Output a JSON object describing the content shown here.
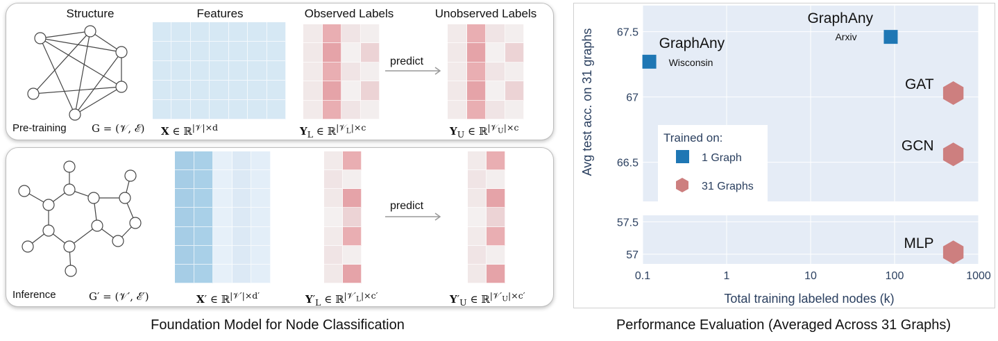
{
  "left": {
    "pretrain": {
      "headers": {
        "structure": "Structure",
        "features": "Features",
        "observed": "Observed Labels",
        "unobserved": "Unobserved Labels"
      },
      "stage_label": "Pre-training",
      "graph_math": "G = (𝒱, ℰ)",
      "features_math": "X ∈ ℝ|𝒱|×d",
      "observed_math": "YL ∈ ℝ|𝒱L|×c",
      "unobserved_math": "YU ∈ ℝ|𝒱U|×c",
      "predict": "predict"
    },
    "inference": {
      "stage_label": "Inference",
      "graph_math": "G′ = (𝒱′, ℰ′)",
      "features_math": "X′ ∈ ℝ|𝒱′|×d′",
      "observed_math": "Y′L ∈ ℝ|𝒱′L|×c′",
      "unobserved_math": "Y′U ∈ ℝ|𝒱′U|×c′",
      "predict": "predict"
    },
    "caption": "Foundation Model for Node Classification"
  },
  "colors": {
    "blue_marker": "#1f77b4",
    "red_marker": "#cd7f7f",
    "plot_bg": "#e5ecf6",
    "feature_blue": "#a6cde6",
    "label_red": "#e8a0a6"
  },
  "chart_data": {
    "type": "scatter",
    "title": "",
    "xlabel": "Total training labeled nodes (k)",
    "ylabel": "Avg test acc. on 31 graphs",
    "x_scale": "log",
    "xlim": [
      0.1,
      1000
    ],
    "x_ticks": [
      "0.1",
      "1",
      "10",
      "100",
      "1000"
    ],
    "upper_panel": {
      "ylim": [
        66.2,
        67.7
      ],
      "y_ticks": [
        "66.5",
        "67",
        "67.5"
      ]
    },
    "lower_panel": {
      "ylim": [
        56.85,
        57.6
      ],
      "y_ticks": [
        "57",
        "57.5"
      ]
    },
    "legend": {
      "title": "Trained on:",
      "position": "center-left",
      "entries": [
        "1 Graph",
        "31 Graphs"
      ]
    },
    "series": [
      {
        "name": "1 Graph",
        "marker": "square",
        "color": "#1f77b4",
        "points": [
          {
            "label": "GraphAny",
            "sublabel": "Wisconsin",
            "x": 0.12,
            "y": 67.27
          },
          {
            "label": "GraphAny",
            "sublabel": "Arxiv",
            "x": 90,
            "y": 67.46
          }
        ]
      },
      {
        "name": "31 Graphs",
        "marker": "hexagon",
        "color": "#cd7f7f",
        "points": [
          {
            "label": "GAT",
            "x": 500,
            "y": 67.03
          },
          {
            "label": "GCN",
            "x": 500,
            "y": 66.56
          },
          {
            "label": "MLP",
            "x": 500,
            "y": 57.03
          }
        ]
      }
    ],
    "grid": true,
    "caption": "Performance Evaluation (Averaged Across 31 Graphs)"
  }
}
